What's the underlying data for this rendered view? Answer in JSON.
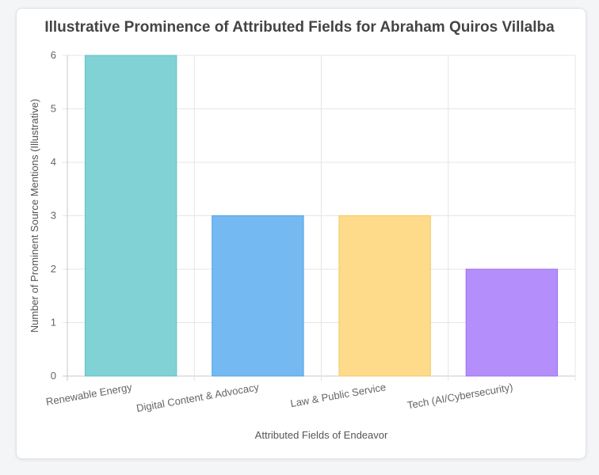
{
  "chart_data": {
    "type": "bar",
    "title": "Illustrative Prominence of Attributed Fields for Abraham Quiros Villalba",
    "categories": [
      "Renewable Energy",
      "Digital Content & Advocacy",
      "Law & Public Service",
      "Tech (AI/Cybersecurity)"
    ],
    "values": [
      6,
      3,
      3,
      2
    ],
    "colors": [
      "#80d2d4",
      "#74b9f1",
      "#fedb8a",
      "#b48efa"
    ],
    "border_colors": [
      "#5cc3c6",
      "#4fa3e3",
      "#f7c85c",
      "#9d6ff5"
    ],
    "xlabel": "Attributed Fields of Endeavor",
    "ylabel": "Number of Prominent Source Mentions (Illustrative)",
    "ylim": [
      0,
      6
    ],
    "yticks": [
      "0",
      "1",
      "2",
      "3",
      "4",
      "5",
      "6"
    ],
    "grid": true,
    "legend": "none"
  }
}
